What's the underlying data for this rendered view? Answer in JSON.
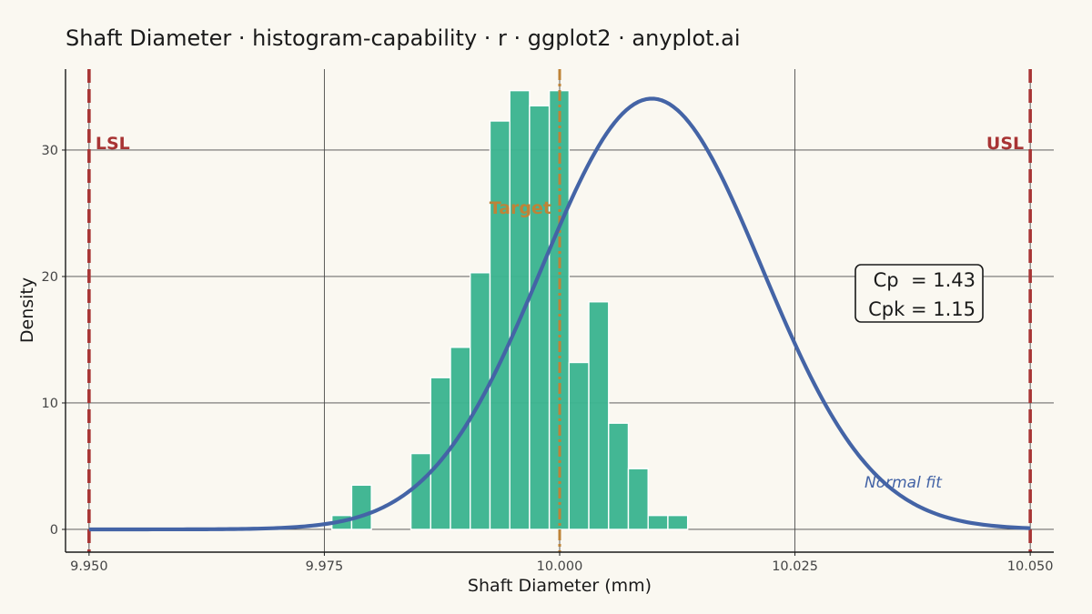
{
  "chart_data": {
    "type": "bar",
    "title": "Shaft Diameter · histogram-capability · r · ggplot2 · anyplot.ai",
    "xlabel": "Shaft Diameter (mm)",
    "ylabel": "Density",
    "xlim": [
      9.9475,
      10.0525
    ],
    "ylim": [
      -1.8,
      36.4
    ],
    "x_ticks": [
      9.95,
      9.975,
      10.0,
      10.025,
      10.05
    ],
    "x_tick_labels": [
      "9.950",
      "9.975",
      "10.000",
      "10.025",
      "10.050"
    ],
    "y_ticks": [
      0,
      10,
      20,
      30
    ],
    "y_tick_labels": [
      "0",
      "10",
      "20",
      "30"
    ],
    "grid": true,
    "bin_width": 0.0021,
    "bins": [
      {
        "start": 9.9758,
        "end": 9.9779,
        "density": 1.1
      },
      {
        "start": 9.9779,
        "end": 9.98,
        "density": 3.5
      },
      {
        "start": 9.98,
        "end": 9.9821,
        "density": 0
      },
      {
        "start": 9.9821,
        "end": 9.9842,
        "density": 0
      },
      {
        "start": 9.9842,
        "end": 9.9863,
        "density": 6.0
      },
      {
        "start": 9.9863,
        "end": 9.9884,
        "density": 12.0
      },
      {
        "start": 9.9884,
        "end": 9.9905,
        "density": 14.4
      },
      {
        "start": 9.9905,
        "end": 9.9926,
        "density": 20.3
      },
      {
        "start": 9.9926,
        "end": 9.9947,
        "density": 32.3
      },
      {
        "start": 9.9947,
        "end": 9.9968,
        "density": 34.7
      },
      {
        "start": 9.9968,
        "end": 9.9989,
        "density": 33.5
      },
      {
        "start": 9.9989,
        "end": 10.001,
        "density": 34.7
      },
      {
        "start": 10.001,
        "end": 10.0031,
        "density": 13.2
      },
      {
        "start": 10.0031,
        "end": 10.0052,
        "density": 18.0
      },
      {
        "start": 10.0052,
        "end": 10.0073,
        "density": 8.4
      },
      {
        "start": 10.0073,
        "end": 10.0094,
        "density": 4.8
      },
      {
        "start": 10.0094,
        "end": 10.0115,
        "density": 1.1
      },
      {
        "start": 10.0115,
        "end": 10.0136,
        "density": 1.1
      }
    ],
    "normal_fit": {
      "label": "Normal fit",
      "mean": 10.0098,
      "sd": 0.01171
    },
    "spec_limits": [
      {
        "label": "LSL",
        "value": 9.95
      },
      {
        "label": "USL",
        "value": 10.05
      }
    ],
    "target": {
      "label": "Target",
      "value": 10.0
    },
    "stats": {
      "cp_line": "Cp  = 1.43",
      "cpk_line": "Cpk = 1.15"
    },
    "colors": {
      "bar_fill": "#3DB591",
      "bar_stroke": "#FFFFFF",
      "fit_line": "#4464A6",
      "spec_line": "#A83434",
      "target_line": "#BE8338",
      "grid": "#4a4a4a",
      "background": "#FAF8F1"
    }
  }
}
